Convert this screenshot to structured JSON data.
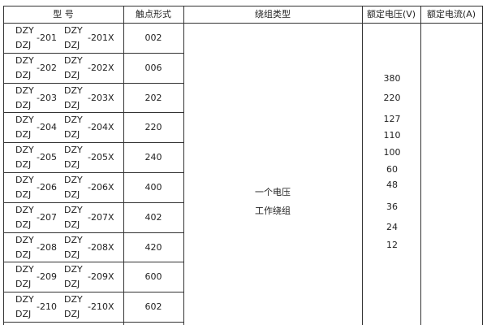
{
  "headers": {
    "model": "型    号",
    "contact": "触点形式",
    "winding": "绕组类型",
    "voltage": "额定电压(V)",
    "current": "额定电流(A)"
  },
  "rows": [
    {
      "a": "DZY",
      "b": "DZJ",
      "num": "-201",
      "c": "DZY",
      "d": "DZJ",
      "numx": "-201X",
      "contact": "002"
    },
    {
      "a": "DZY",
      "b": "DZJ",
      "num": "-202",
      "c": "DZY",
      "d": "DZJ",
      "numx": "-202X",
      "contact": "006"
    },
    {
      "a": "DZY",
      "b": "DZJ",
      "num": "-203",
      "c": "DZY",
      "d": "DZJ",
      "numx": "-203X",
      "contact": "202"
    },
    {
      "a": "DZY",
      "b": "DZJ",
      "num": "-204",
      "c": "DZY",
      "d": "DZJ",
      "numx": "-204X",
      "contact": "220"
    },
    {
      "a": "DZY",
      "b": "DZJ",
      "num": "-205",
      "c": "DZY",
      "d": "DZJ",
      "numx": "-205X",
      "contact": "240"
    },
    {
      "a": "DZY",
      "b": "DZJ",
      "num": "-206",
      "c": "DZY",
      "d": "DZJ",
      "numx": "-206X",
      "contact": "400"
    },
    {
      "a": "DZY",
      "b": "DZJ",
      "num": "-207",
      "c": "DZY",
      "d": "DZJ",
      "numx": "-207X",
      "contact": "402"
    },
    {
      "a": "DZY",
      "b": "DZJ",
      "num": "-208",
      "c": "DZY",
      "d": "DZJ",
      "numx": "-208X",
      "contact": "420"
    },
    {
      "a": "DZY",
      "b": "DZJ",
      "num": "-209",
      "c": "DZY",
      "d": "DZJ",
      "numx": "-209X",
      "contact": "600"
    },
    {
      "a": "DZY",
      "b": "DZJ",
      "num": "-210",
      "c": "DZY",
      "d": "DZJ",
      "numx": "-210X",
      "contact": "602"
    }
  ],
  "winding": [
    "一个电压",
    "工作绕组"
  ],
  "voltages": [
    "380",
    "220",
    "127",
    "110",
    "100",
    "60",
    "48",
    "36",
    "24",
    "12"
  ]
}
